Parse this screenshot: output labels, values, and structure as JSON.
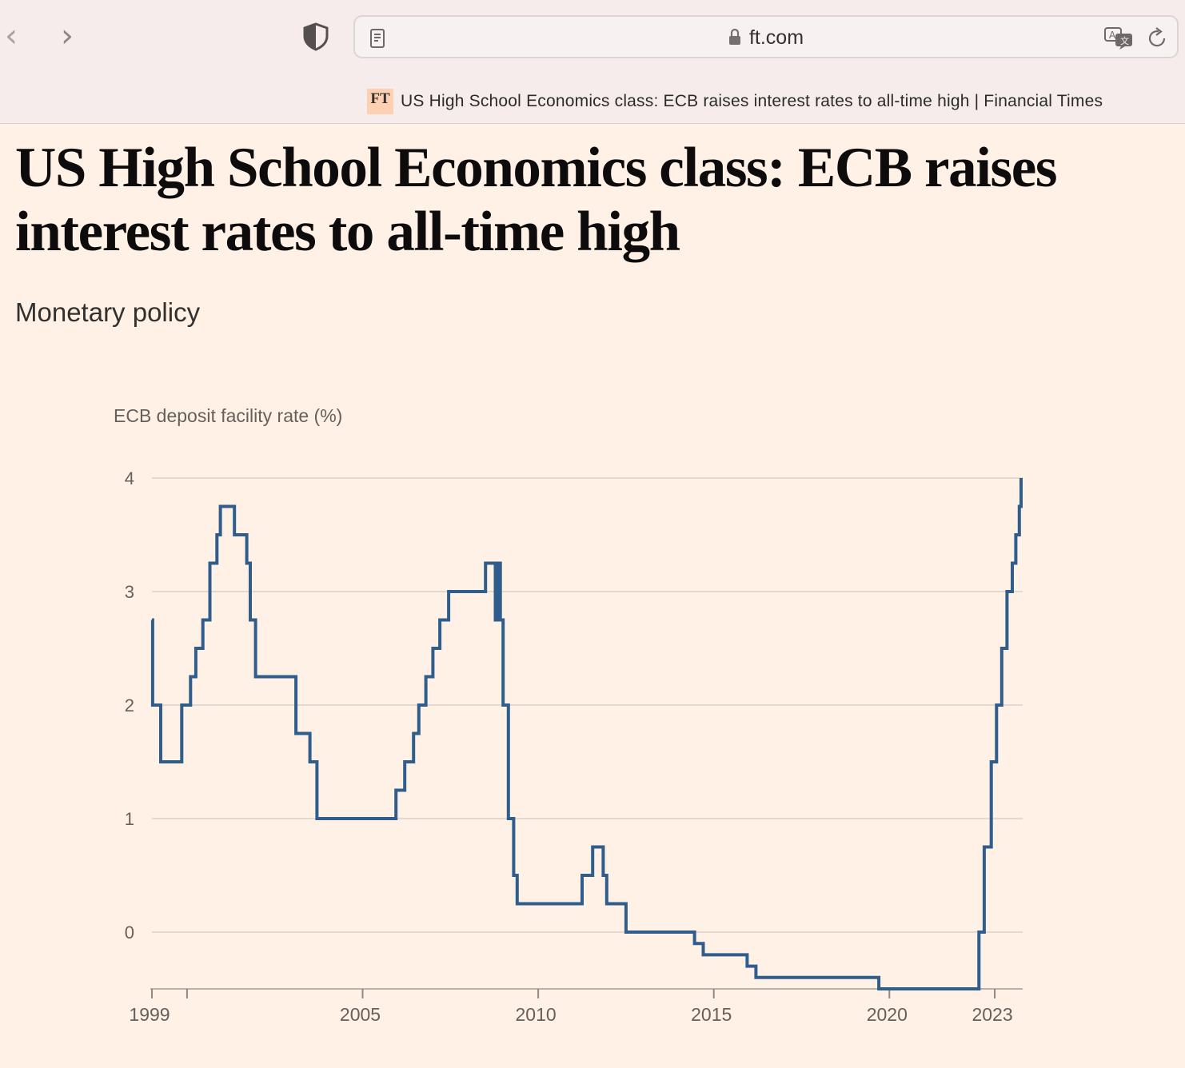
{
  "browser": {
    "url": "ft.com",
    "tab_favicon": "FT",
    "tab_title": "US High School Economics class: ECB raises interest rates to all-time high | Financial Times",
    "icons": [
      "back-icon",
      "forward-icon",
      "privacy-shield-icon",
      "reader-mode-icon",
      "lock-icon",
      "translate-icon",
      "reload-icon"
    ]
  },
  "article": {
    "headline": "US High School Economics class: ECB raises interest rates to all-time high",
    "topic": "Monetary policy"
  },
  "colors": {
    "background": "#fff1e5",
    "line": "#2f5d8c",
    "grid": "#e2d9d2",
    "text": "#66605c"
  },
  "chart_data": {
    "type": "line",
    "step": true,
    "title": "ECB deposit facility rate (%)",
    "xlabel": "",
    "ylabel": "",
    "ylim": [
      -0.5,
      4
    ],
    "xlim": [
      1999,
      2023.75
    ],
    "yticks": [
      0,
      1,
      2,
      3,
      4
    ],
    "xticks": [
      1999,
      2005,
      2010,
      2015,
      2020,
      2023
    ],
    "grid": true,
    "series": [
      {
        "values": [
          [
            1999.0,
            2.75
          ],
          [
            1999.02,
            2.0
          ],
          [
            1999.25,
            1.5
          ],
          [
            1999.85,
            2.0
          ],
          [
            2000.1,
            2.25
          ],
          [
            2000.25,
            2.5
          ],
          [
            2000.45,
            2.75
          ],
          [
            2000.65,
            3.25
          ],
          [
            2000.85,
            3.5
          ],
          [
            2000.95,
            3.75
          ],
          [
            2001.35,
            3.5
          ],
          [
            2001.7,
            3.25
          ],
          [
            2001.8,
            2.75
          ],
          [
            2001.95,
            2.25
          ],
          [
            2003.1,
            1.75
          ],
          [
            2003.5,
            1.5
          ],
          [
            2003.7,
            1.0
          ],
          [
            2005.95,
            1.25
          ],
          [
            2006.2,
            1.5
          ],
          [
            2006.45,
            1.75
          ],
          [
            2006.6,
            2.0
          ],
          [
            2006.8,
            2.25
          ],
          [
            2007.0,
            2.5
          ],
          [
            2007.2,
            2.75
          ],
          [
            2007.45,
            3.0
          ],
          [
            2008.5,
            3.25
          ],
          [
            2008.78,
            2.75
          ],
          [
            2008.85,
            3.25
          ],
          [
            2008.92,
            2.75
          ],
          [
            2009.0,
            2.0
          ],
          [
            2009.15,
            1.0
          ],
          [
            2009.3,
            0.5
          ],
          [
            2009.4,
            0.25
          ],
          [
            2011.25,
            0.5
          ],
          [
            2011.55,
            0.75
          ],
          [
            2011.85,
            0.5
          ],
          [
            2011.95,
            0.25
          ],
          [
            2012.5,
            0.0
          ],
          [
            2014.45,
            -0.1
          ],
          [
            2014.7,
            -0.2
          ],
          [
            2015.95,
            -0.3
          ],
          [
            2016.2,
            -0.4
          ],
          [
            2019.7,
            -0.5
          ],
          [
            2022.55,
            0.0
          ],
          [
            2022.7,
            0.75
          ],
          [
            2022.9,
            1.5
          ],
          [
            2023.05,
            2.0
          ],
          [
            2023.2,
            2.5
          ],
          [
            2023.35,
            3.0
          ],
          [
            2023.5,
            3.25
          ],
          [
            2023.6,
            3.5
          ],
          [
            2023.7,
            3.75
          ],
          [
            2023.75,
            4.0
          ]
        ]
      }
    ]
  }
}
